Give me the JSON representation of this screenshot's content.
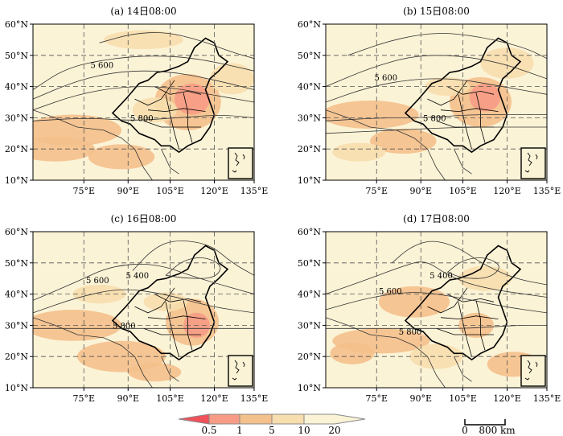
{
  "panels": [
    {
      "title": "(a) 14日08:00",
      "contour_labels": [
        "5 600",
        "5 800"
      ]
    },
    {
      "title": "(b) 15日08:00",
      "contour_labels": [
        "5 600",
        "5 800"
      ]
    },
    {
      "title": "(c) 16日08:00",
      "contour_labels": [
        "5 600",
        "5 400",
        "5 800"
      ]
    },
    {
      "title": "(d) 17日08:00",
      "contour_labels": [
        "5 600",
        "5 400",
        "5 800"
      ]
    }
  ],
  "lat_ticks": [
    "60°N",
    "50°N",
    "40°N",
    "30°N",
    "20°N",
    "10°N"
  ],
  "lon_ticks": [
    "75°E",
    "90°E",
    "105°E",
    "120°E",
    "135°E"
  ],
  "legend": {
    "labels": [
      "0.5",
      "1",
      "5",
      "10",
      "20"
    ],
    "colors": [
      "#f0515a",
      "#f79b86",
      "#f4c08c",
      "#f7deae",
      "#fbf3d6"
    ]
  },
  "scale_bar": {
    "start_label": "0",
    "end_label": "800 km"
  }
}
